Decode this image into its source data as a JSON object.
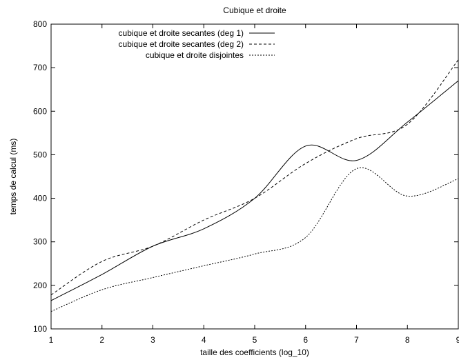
{
  "chart_data": {
    "type": "line",
    "title": "Cubique et droite",
    "xlabel": "taille des coefficients (log_10)",
    "ylabel": "temps de calcul (ms)",
    "xlim": [
      1,
      9
    ],
    "ylim": [
      100,
      800
    ],
    "x_ticks": [
      1,
      2,
      3,
      4,
      5,
      6,
      7,
      8,
      9
    ],
    "y_ticks": [
      100,
      200,
      300,
      400,
      500,
      600,
      700,
      800
    ],
    "grid": false,
    "legend_position": "top",
    "x": [
      1,
      2,
      3,
      4,
      5,
      6,
      7,
      8,
      9
    ],
    "series": [
      {
        "name": "cubique et droite secantes (deg 1)",
        "style": "solid",
        "values": [
          165,
          225,
          290,
          330,
          400,
          520,
          487,
          575,
          670
        ]
      },
      {
        "name": "cubique et droite secantes (deg 2)",
        "style": "dashed",
        "values": [
          178,
          255,
          290,
          350,
          400,
          480,
          537,
          570,
          718
        ]
      },
      {
        "name": "cubique et droite disjointes",
        "style": "dotted",
        "values": [
          140,
          190,
          218,
          245,
          272,
          310,
          468,
          405,
          445
        ]
      }
    ]
  }
}
